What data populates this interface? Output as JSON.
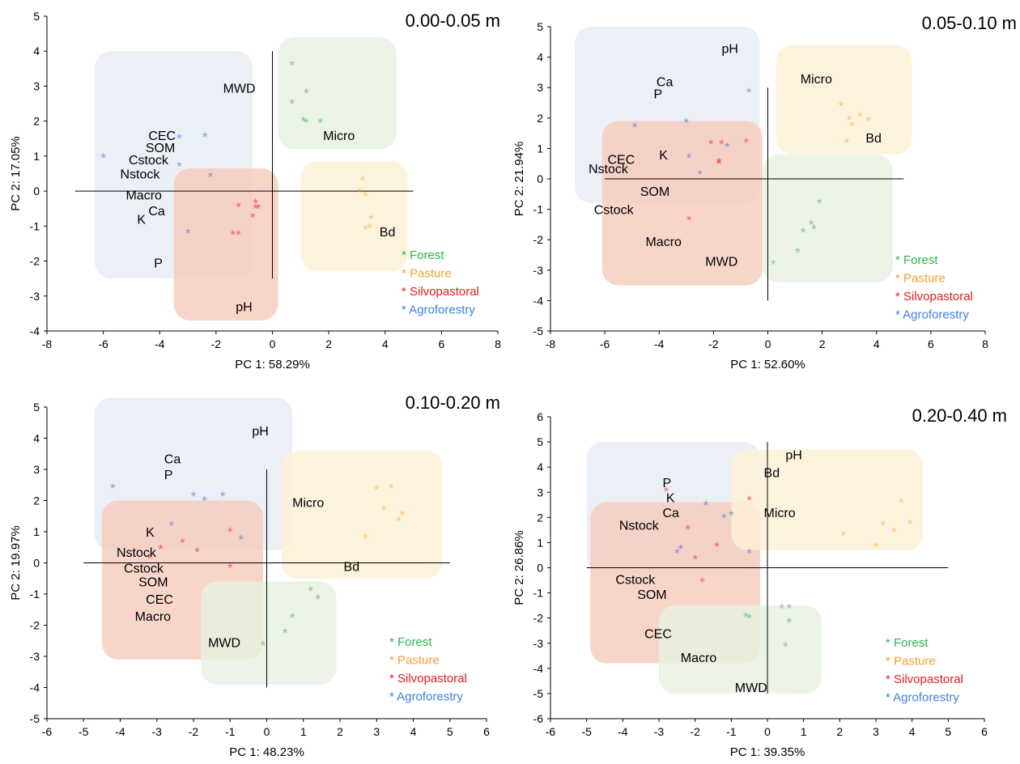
{
  "figure": {
    "panel_order": [
      "0.00-0.05 m",
      "0.05-0.10 m",
      "0.10-0.20 m",
      "0.20-0.40 m"
    ]
  },
  "colors": {
    "forest": "#3fb05a",
    "pasture": "#f5a93b",
    "silvopastoral": "#e62020",
    "agroforestry": "#3a6fd8",
    "box_agroforestry": "#e6ebf4",
    "box_silvopastoral": "#f7ccbd",
    "box_forest": "#e7f1e1",
    "box_pasture": "#fcf0d6",
    "label_forest": "#2db34a",
    "label_pasture": "#f0a030",
    "label_silvopastoral": "#e01e1e",
    "label_agroforestry": "#3f7fe0"
  },
  "chart_data": [
    {
      "type": "scatter",
      "title": "0.00-0.05 m",
      "xlabel": "PC 1: 58.29%",
      "ylabel": "PC 2: 17.05%",
      "xlim": [
        -8,
        8
      ],
      "ylim": [
        -4,
        5
      ],
      "xticks": [
        -8,
        -6,
        -4,
        -2,
        0,
        2,
        4,
        6,
        8
      ],
      "yticks": [
        -4,
        -3,
        -2,
        -1,
        0,
        1,
        2,
        3,
        4,
        5
      ],
      "crosshair": {
        "h_from": -7,
        "h_to": 5,
        "v_from": -2.5,
        "v_to": 4
      },
      "legend": [
        "* Forest",
        "* Pasture",
        "* Silvopastoral",
        "* Agroforestry"
      ],
      "groups": [
        {
          "name": "Agroforestry",
          "box": [
            -6.3,
            -2.5,
            -0.7,
            4.0
          ],
          "points": [
            [
              -6.0,
              1.0
            ],
            [
              -3.3,
              1.55
            ],
            [
              -2.4,
              1.6
            ],
            [
              -3.3,
              0.75
            ],
            [
              -2.2,
              0.45
            ],
            [
              -3.0,
              -1.15
            ]
          ]
        },
        {
          "name": "Silvopastoral",
          "box": [
            -3.5,
            -3.7,
            0.2,
            0.65
          ],
          "points": [
            [
              -1.2,
              -0.4
            ],
            [
              -0.6,
              -0.3
            ],
            [
              -0.5,
              -0.45
            ],
            [
              -0.7,
              -0.7
            ],
            [
              -1.4,
              -1.2
            ],
            [
              -1.2,
              -1.2
            ],
            [
              -0.6,
              -0.45
            ]
          ]
        },
        {
          "name": "Forest",
          "box": [
            0.2,
            1.2,
            4.4,
            4.4
          ],
          "points": [
            [
              0.7,
              3.65
            ],
            [
              1.2,
              2.85
            ],
            [
              0.7,
              2.55
            ],
            [
              1.1,
              2.05
            ],
            [
              1.2,
              2.0
            ],
            [
              1.7,
              2.0
            ]
          ]
        },
        {
          "name": "Pasture",
          "box": [
            1.0,
            -2.3,
            4.8,
            0.85
          ],
          "points": [
            [
              3.2,
              0.35
            ],
            [
              3.1,
              0.0
            ],
            [
              3.3,
              -0.1
            ],
            [
              3.5,
              -0.75
            ],
            [
              3.3,
              -1.05
            ],
            [
              3.45,
              -1.0
            ]
          ]
        }
      ],
      "variables": [
        {
          "label": "MWD",
          "x": -1.75,
          "y": 2.95
        },
        {
          "label": "CEC",
          "x": -4.4,
          "y": 1.6
        },
        {
          "label": "SOM",
          "x": -4.5,
          "y": 1.25
        },
        {
          "label": "Cstock",
          "x": -5.1,
          "y": 0.9
        },
        {
          "label": "Nstock",
          "x": -5.4,
          "y": 0.5
        },
        {
          "label": "Macro",
          "x": -5.2,
          "y": -0.1
        },
        {
          "label": "Ca",
          "x": -4.4,
          "y": -0.55
        },
        {
          "label": "K",
          "x": -4.8,
          "y": -0.8
        },
        {
          "label": "P",
          "x": -4.2,
          "y": -2.05
        },
        {
          "label": "Micro",
          "x": 1.8,
          "y": 1.6
        },
        {
          "label": "Bd",
          "x": 3.8,
          "y": -1.15
        },
        {
          "label": "pH",
          "x": -1.3,
          "y": -3.3
        }
      ]
    },
    {
      "type": "scatter",
      "title": "0.05-0.10 m",
      "xlabel": "PC 1: 52.60%",
      "ylabel": "PC 2: 21.94%",
      "xlim": [
        -8,
        8
      ],
      "ylim": [
        -5,
        5
      ],
      "xticks": [
        -8,
        -6,
        -4,
        -2,
        0,
        2,
        4,
        6,
        8
      ],
      "yticks": [
        -5,
        -4,
        -3,
        -2,
        -1,
        0,
        1,
        2,
        3,
        4,
        5
      ],
      "crosshair": {
        "h_from": -6,
        "h_to": 5,
        "v_from": -4,
        "v_to": 3
      },
      "legend": [
        "* Forest",
        "* Pasture",
        "* Silvopastoral",
        "* Agroforestry"
      ],
      "groups": [
        {
          "name": "Agroforestry",
          "box": [
            -7.1,
            -0.8,
            -0.3,
            5.0
          ],
          "points": [
            [
              -4.9,
              1.75
            ],
            [
              -3.0,
              1.9
            ],
            [
              -2.9,
              0.75
            ],
            [
              -2.5,
              0.2
            ],
            [
              -1.5,
              1.1
            ],
            [
              -0.7,
              2.9
            ]
          ]
        },
        {
          "name": "Silvopastoral",
          "box": [
            -6.1,
            -3.5,
            -0.2,
            1.9
          ],
          "points": [
            [
              -2.1,
              1.2
            ],
            [
              -1.7,
              1.2
            ],
            [
              -1.8,
              0.55
            ],
            [
              -0.8,
              1.25
            ],
            [
              -2.9,
              -1.3
            ],
            [
              -1.8,
              0.6
            ]
          ]
        },
        {
          "name": "Forest",
          "box": [
            -0.2,
            -3.4,
            4.6,
            0.8
          ],
          "points": [
            [
              1.9,
              -0.75
            ],
            [
              1.6,
              -1.45
            ],
            [
              1.7,
              -1.6
            ],
            [
              1.3,
              -1.7
            ],
            [
              1.1,
              -2.35
            ],
            [
              0.2,
              -2.75
            ]
          ]
        },
        {
          "name": "Pasture",
          "box": [
            0.3,
            0.8,
            5.3,
            4.4
          ],
          "points": [
            [
              2.7,
              2.45
            ],
            [
              3.0,
              2.0
            ],
            [
              3.1,
              1.8
            ],
            [
              3.4,
              2.1
            ],
            [
              3.7,
              1.95
            ],
            [
              2.9,
              1.25
            ]
          ]
        }
      ],
      "variables": [
        {
          "label": "pH",
          "x": -1.7,
          "y": 4.3
        },
        {
          "label": "Micro",
          "x": 1.2,
          "y": 3.3
        },
        {
          "label": "Ca",
          "x": -4.1,
          "y": 3.2
        },
        {
          "label": "P",
          "x": -4.2,
          "y": 2.8
        },
        {
          "label": "CEC",
          "x": -5.9,
          "y": 0.65
        },
        {
          "label": "K",
          "x": -4.0,
          "y": 0.8
        },
        {
          "label": "Nstock",
          "x": -6.6,
          "y": 0.35
        },
        {
          "label": "SOM",
          "x": -4.7,
          "y": -0.4
        },
        {
          "label": "Cstock",
          "x": -6.4,
          "y": -1.0
        },
        {
          "label": "Macro",
          "x": -4.5,
          "y": -2.05
        },
        {
          "label": "MWD",
          "x": -2.3,
          "y": -2.7
        },
        {
          "label": "Bd",
          "x": 3.6,
          "y": 1.35
        }
      ]
    },
    {
      "type": "scatter",
      "title": "0.10-0.20 m",
      "xlabel": "PC 1: 48.23%",
      "ylabel": "PC 2: 19.97%",
      "xlim": [
        -6,
        6
      ],
      "ylim": [
        -5,
        5
      ],
      "xticks": [
        -6,
        -5,
        -4,
        -3,
        -2,
        -1,
        0,
        1,
        2,
        3,
        4,
        5,
        6
      ],
      "yticks": [
        -5,
        -4,
        -3,
        -2,
        -1,
        0,
        1,
        2,
        3,
        4,
        5
      ],
      "crosshair": {
        "h_from": -5,
        "h_to": 5,
        "v_from": -4,
        "v_to": 3
      },
      "legend": [
        "* Forest",
        "* Pasture",
        "* Silvopastoral",
        "* Agroforestry"
      ],
      "groups": [
        {
          "name": "Agroforestry",
          "box": [
            -4.7,
            0.4,
            0.7,
            5.3
          ],
          "points": [
            [
              -4.2,
              2.45
            ],
            [
              -2.0,
              2.2
            ],
            [
              -1.7,
              2.05
            ],
            [
              -1.2,
              2.2
            ],
            [
              -2.6,
              1.25
            ],
            [
              -0.7,
              0.8
            ]
          ]
        },
        {
          "name": "Silvopastoral",
          "box": [
            -4.5,
            -3.1,
            -0.1,
            2.0
          ],
          "points": [
            [
              -3.2,
              0.2
            ],
            [
              -2.9,
              0.5
            ],
            [
              -2.3,
              0.7
            ],
            [
              -1.9,
              0.4
            ],
            [
              -1.0,
              1.05
            ],
            [
              -1.0,
              -0.1
            ]
          ]
        },
        {
          "name": "Forest",
          "box": [
            -1.8,
            -3.9,
            1.9,
            -0.6
          ],
          "points": [
            [
              1.2,
              -0.85
            ],
            [
              1.4,
              -1.1
            ],
            [
              0.7,
              -1.7
            ],
            [
              0.5,
              -2.2
            ],
            [
              -0.1,
              -2.6
            ]
          ]
        },
        {
          "name": "Pasture",
          "box": [
            0.4,
            -0.5,
            4.8,
            3.6
          ],
          "points": [
            [
              3.0,
              2.4
            ],
            [
              3.4,
              2.45
            ],
            [
              3.7,
              1.6
            ],
            [
              3.2,
              1.75
            ],
            [
              3.6,
              1.4
            ],
            [
              2.7,
              0.85
            ]
          ]
        }
      ],
      "variables": [
        {
          "label": "pH",
          "x": -0.4,
          "y": 4.25
        },
        {
          "label": "Ca",
          "x": -2.8,
          "y": 3.35
        },
        {
          "label": "P",
          "x": -2.8,
          "y": 2.85
        },
        {
          "label": "Micro",
          "x": 0.7,
          "y": 1.95
        },
        {
          "label": "K",
          "x": -3.3,
          "y": 1.0
        },
        {
          "label": "Nstock",
          "x": -4.1,
          "y": 0.35
        },
        {
          "label": "Cstock",
          "x": -3.9,
          "y": -0.15
        },
        {
          "label": "SOM",
          "x": -3.5,
          "y": -0.6
        },
        {
          "label": "CEC",
          "x": -3.3,
          "y": -1.15
        },
        {
          "label": "Macro",
          "x": -3.6,
          "y": -1.7
        },
        {
          "label": "MWD",
          "x": -1.6,
          "y": -2.55
        },
        {
          "label": "Bd",
          "x": 2.1,
          "y": -0.1
        }
      ]
    },
    {
      "type": "scatter",
      "title": "0.20-0.40 m",
      "xlabel": "PC 1: 39.35%",
      "ylabel": "PC 2: 26.86%",
      "xlim": [
        -6,
        6
      ],
      "ylim": [
        -6,
        6
      ],
      "xticks": [
        -6,
        -5,
        -4,
        -3,
        -2,
        -1,
        0,
        1,
        2,
        3,
        4,
        5,
        6
      ],
      "yticks": [
        -6,
        -5,
        -4,
        -3,
        -2,
        -1,
        0,
        1,
        2,
        3,
        4,
        5,
        6
      ],
      "crosshair": {
        "h_from": -5,
        "h_to": 5,
        "v_from": -5,
        "v_to": 5
      },
      "legend": [
        "* Forest",
        "* Pasture",
        "* Silvopastoral",
        "* Agroforestry"
      ],
      "groups": [
        {
          "name": "Agroforestry",
          "box": [
            -5.0,
            -0.2,
            -0.2,
            5.0
          ],
          "points": [
            [
              -1.7,
              2.55
            ],
            [
              -1.2,
              2.05
            ],
            [
              -1.0,
              2.15
            ],
            [
              -2.4,
              0.8
            ],
            [
              -2.5,
              0.65
            ],
            [
              -0.5,
              0.65
            ]
          ]
        },
        {
          "name": "Silvopastoral",
          "box": [
            -4.9,
            -3.8,
            -0.2,
            2.6
          ],
          "points": [
            [
              -2.8,
              3.1
            ],
            [
              -2.2,
              1.6
            ],
            [
              -1.4,
              0.9
            ],
            [
              -2.0,
              0.4
            ],
            [
              -1.8,
              -0.5
            ],
            [
              -0.5,
              2.75
            ]
          ]
        },
        {
          "name": "Forest",
          "box": [
            -3.0,
            -5.0,
            1.5,
            -1.5
          ],
          "points": [
            [
              0.4,
              -1.55
            ],
            [
              0.6,
              -1.55
            ],
            [
              0.6,
              -2.1
            ],
            [
              -0.6,
              -1.9
            ],
            [
              -0.5,
              -1.95
            ],
            [
              0.5,
              -3.05
            ]
          ]
        },
        {
          "name": "Pasture",
          "box": [
            -1.0,
            0.7,
            4.3,
            4.7
          ],
          "points": [
            [
              3.7,
              2.65
            ],
            [
              2.1,
              1.35
            ],
            [
              3.2,
              1.75
            ],
            [
              3.5,
              1.5
            ],
            [
              3.95,
              1.8
            ],
            [
              3.0,
              0.9
            ]
          ]
        }
      ],
      "variables": [
        {
          "label": "pH",
          "x": 0.5,
          "y": 4.5
        },
        {
          "label": "Bd",
          "x": -0.1,
          "y": 3.8
        },
        {
          "label": "P",
          "x": -2.9,
          "y": 3.4
        },
        {
          "label": "K",
          "x": -2.8,
          "y": 2.8
        },
        {
          "label": "Ca",
          "x": -2.9,
          "y": 2.2
        },
        {
          "label": "Micro",
          "x": -0.1,
          "y": 2.2
        },
        {
          "label": "Nstock",
          "x": -4.1,
          "y": 1.7
        },
        {
          "label": "Cstock",
          "x": -4.2,
          "y": -0.45
        },
        {
          "label": "SOM",
          "x": -3.6,
          "y": -1.05
        },
        {
          "label": "CEC",
          "x": -3.4,
          "y": -2.6
        },
        {
          "label": "Macro",
          "x": -2.4,
          "y": -3.55
        },
        {
          "label": "MWD",
          "x": -0.9,
          "y": -4.75
        }
      ]
    }
  ]
}
